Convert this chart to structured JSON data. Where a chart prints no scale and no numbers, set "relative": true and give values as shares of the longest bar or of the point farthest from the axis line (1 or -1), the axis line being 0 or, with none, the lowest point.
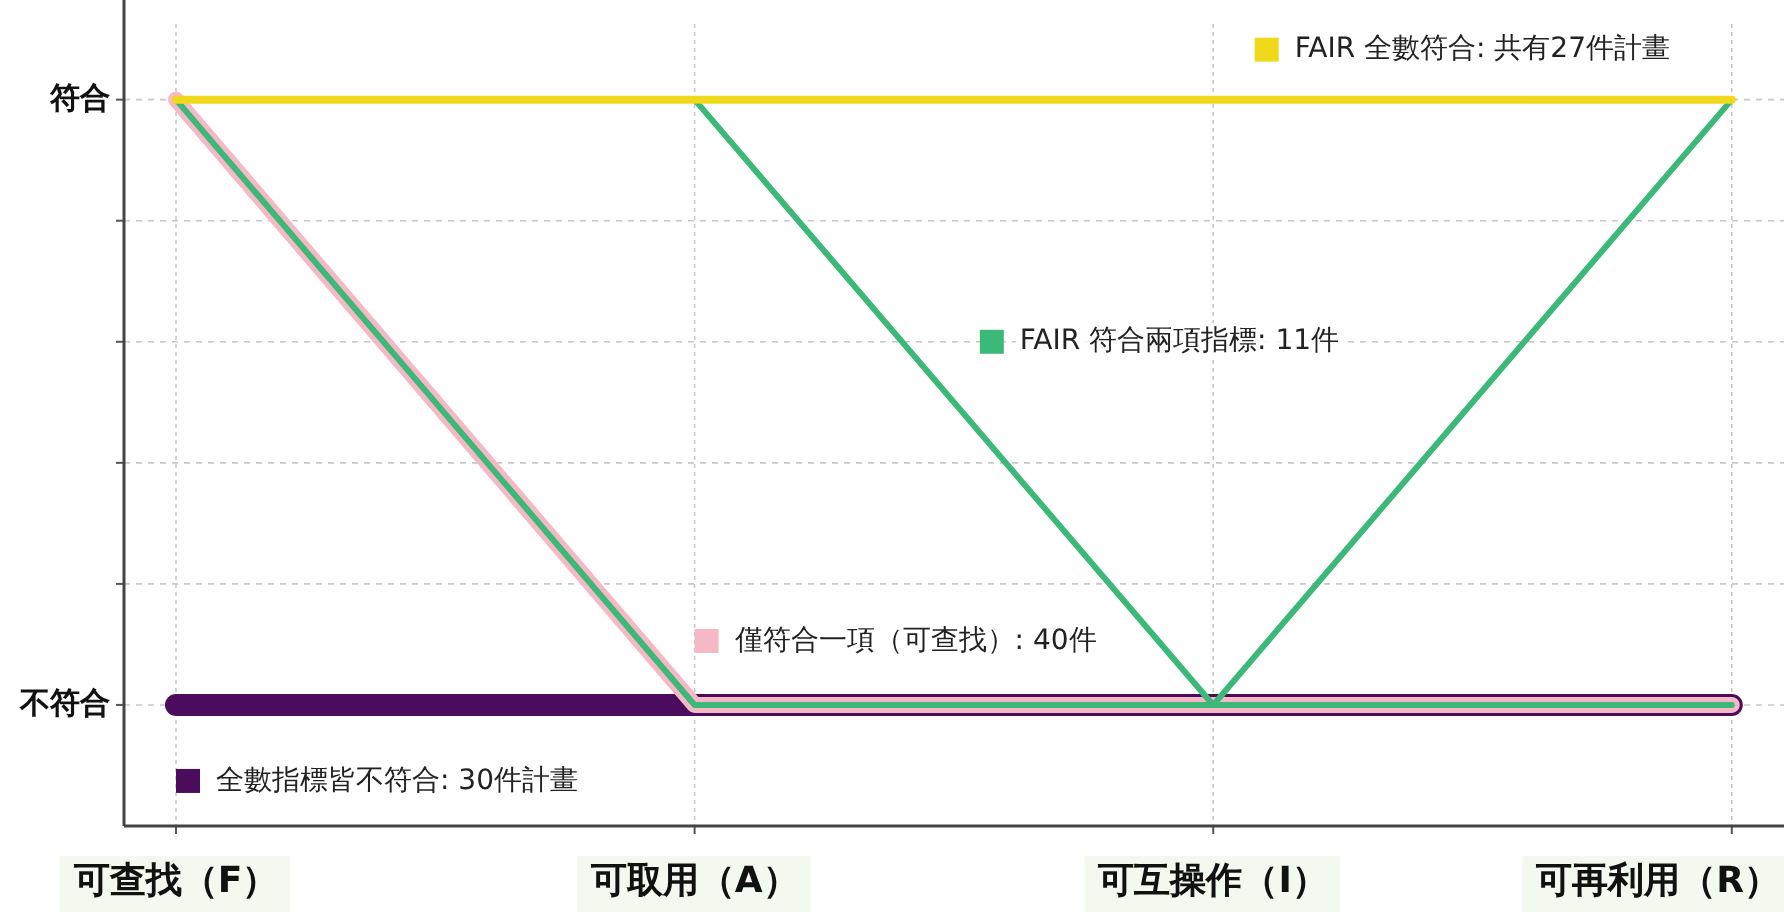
{
  "chart_data": {
    "type": "line",
    "categories": [
      "可查找（F）",
      "可取用（A）",
      "可互操作（I）",
      "可再利用（R）"
    ],
    "relative": true,
    "annotations": [
      "符合",
      "不符合"
    ],
    "grid": true,
    "legend": "bottom left",
    "series": [
      {
        "name": "全數指標皆不符合: 30件計畫",
        "color": "#4b0c5e",
        "values": [
          0,
          0,
          0,
          0
        ]
      },
      {
        "name": "僅符合一項（可查找）: 40件",
        "color": "#f7b8c6",
        "values": [
          1,
          0,
          0,
          0
        ]
      },
      {
        "name": "FAIR 符合兩項指標: 11件",
        "color": "#3cb878",
        "values": [
          1,
          1,
          0,
          0
        ]
      },
      {
        "color": "#3cb878",
        "values": [
          1,
          0,
          0,
          1
        ]
      },
      {
        "name": "FAIR 全數符合: 共有27件計畫",
        "color": "#f0d81a",
        "values": [
          1,
          1,
          1,
          1
        ]
      }
    ]
  }
}
